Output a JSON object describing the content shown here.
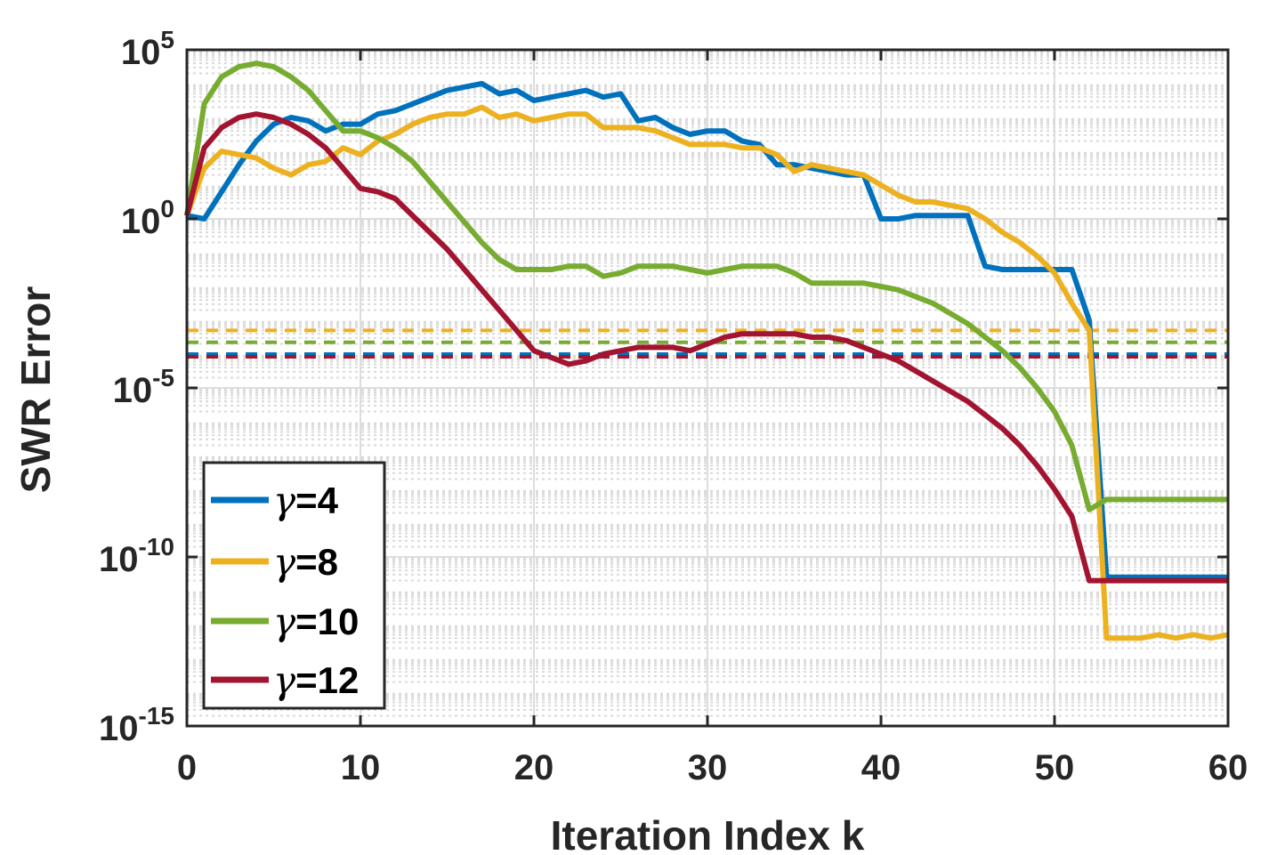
{
  "chart_data": {
    "type": "line",
    "xlabel": "Iteration Index k",
    "ylabel": "SWR Error",
    "xlim": [
      0,
      60
    ],
    "ylim_log10": [
      -15,
      5
    ],
    "y_scale": "log",
    "grid": true,
    "x_ticks": [
      0,
      10,
      20,
      30,
      40,
      50,
      60
    ],
    "x_tick_labels": [
      "0",
      "10",
      "20",
      "30",
      "40",
      "50",
      "60"
    ],
    "y_ticks": [
      {
        "base": "10",
        "exp": "-15",
        "log": -15
      },
      {
        "base": "10",
        "exp": "-10",
        "log": -10
      },
      {
        "base": "10",
        "exp": "-5",
        "log": -5
      },
      {
        "base": "10",
        "exp": "0",
        "log": 0
      },
      {
        "base": "10",
        "exp": "5",
        "log": 5
      }
    ],
    "legend_position": "bottom-left",
    "series": [
      {
        "name": "γ=4",
        "symbol": "γ",
        "suffix": "=4",
        "color": "#0072BD",
        "log10_values": [
          0.1,
          0.0,
          0.8,
          1.6,
          2.3,
          2.8,
          3.0,
          2.9,
          2.6,
          2.8,
          2.8,
          3.1,
          3.2,
          3.4,
          3.6,
          3.8,
          3.9,
          4.0,
          3.7,
          3.8,
          3.5,
          3.6,
          3.7,
          3.8,
          3.6,
          3.7,
          2.9,
          3.0,
          2.7,
          2.5,
          2.6,
          2.6,
          2.3,
          2.2,
          1.6,
          1.6,
          1.5,
          1.4,
          1.3,
          1.3,
          0.0,
          0.0,
          0.1,
          0.1,
          0.1,
          0.1,
          -1.4,
          -1.5,
          -1.5,
          -1.5,
          -1.5,
          -1.5,
          -3.0,
          -10.6,
          -10.6,
          -10.6,
          -10.6,
          -10.6,
          -10.6,
          -10.6,
          -10.6
        ]
      },
      {
        "name": "γ=8",
        "symbol": "γ",
        "suffix": "=8",
        "color": "#EDB120",
        "log10_values": [
          0.1,
          1.5,
          2.0,
          1.9,
          1.8,
          1.5,
          1.3,
          1.6,
          1.7,
          2.1,
          1.9,
          2.3,
          2.5,
          2.8,
          3.0,
          3.1,
          3.1,
          3.3,
          3.0,
          3.1,
          2.9,
          3.0,
          3.1,
          3.1,
          2.7,
          2.7,
          2.7,
          2.6,
          2.4,
          2.2,
          2.2,
          2.2,
          2.1,
          2.1,
          1.9,
          1.4,
          1.6,
          1.5,
          1.4,
          1.3,
          1.0,
          0.7,
          0.5,
          0.5,
          0.4,
          0.3,
          0.0,
          -0.4,
          -0.7,
          -1.1,
          -1.6,
          -2.5,
          -3.3,
          -12.4,
          -12.4,
          -12.4,
          -12.3,
          -12.4,
          -12.3,
          -12.4,
          -12.3
        ]
      },
      {
        "name": "γ=10",
        "symbol": "γ",
        "suffix": "=10",
        "color": "#77AC30",
        "log10_values": [
          0.1,
          3.4,
          4.2,
          4.5,
          4.6,
          4.5,
          4.2,
          3.8,
          3.2,
          2.6,
          2.6,
          2.4,
          2.1,
          1.7,
          1.1,
          0.5,
          -0.1,
          -0.7,
          -1.2,
          -1.5,
          -1.5,
          -1.5,
          -1.4,
          -1.4,
          -1.7,
          -1.6,
          -1.4,
          -1.4,
          -1.4,
          -1.5,
          -1.6,
          -1.5,
          -1.4,
          -1.4,
          -1.4,
          -1.6,
          -1.9,
          -1.9,
          -1.9,
          -1.9,
          -2.0,
          -2.1,
          -2.3,
          -2.5,
          -2.8,
          -3.1,
          -3.5,
          -3.9,
          -4.4,
          -5.0,
          -5.7,
          -6.7,
          -8.6,
          -8.3,
          -8.3,
          -8.3,
          -8.3,
          -8.3,
          -8.3,
          -8.3,
          -8.3
        ]
      },
      {
        "name": "γ=12",
        "symbol": "γ",
        "suffix": "=12",
        "color": "#A2142F",
        "log10_values": [
          0.1,
          2.1,
          2.7,
          3.0,
          3.1,
          3.0,
          2.8,
          2.5,
          2.1,
          1.5,
          0.9,
          0.8,
          0.6,
          0.1,
          -0.4,
          -0.9,
          -1.5,
          -2.1,
          -2.7,
          -3.3,
          -3.9,
          -4.1,
          -4.3,
          -4.2,
          -4.0,
          -3.9,
          -3.8,
          -3.8,
          -3.8,
          -3.9,
          -3.7,
          -3.5,
          -3.4,
          -3.4,
          -3.4,
          -3.4,
          -3.5,
          -3.5,
          -3.6,
          -3.8,
          -4.0,
          -4.2,
          -4.5,
          -4.8,
          -5.1,
          -5.4,
          -5.8,
          -6.2,
          -6.7,
          -7.3,
          -8.0,
          -8.8,
          -10.7,
          -10.7,
          -10.7,
          -10.7,
          -10.7,
          -10.7,
          -10.7,
          -10.7,
          -10.7
        ]
      }
    ],
    "thresholds": [
      {
        "color": "#EDB120",
        "log10": -3.3
      },
      {
        "color": "#77AC30",
        "log10": -3.65
      },
      {
        "color": "#0072BD",
        "log10": -4.0
      },
      {
        "color": "#A2142F",
        "log10": -4.08
      }
    ]
  }
}
